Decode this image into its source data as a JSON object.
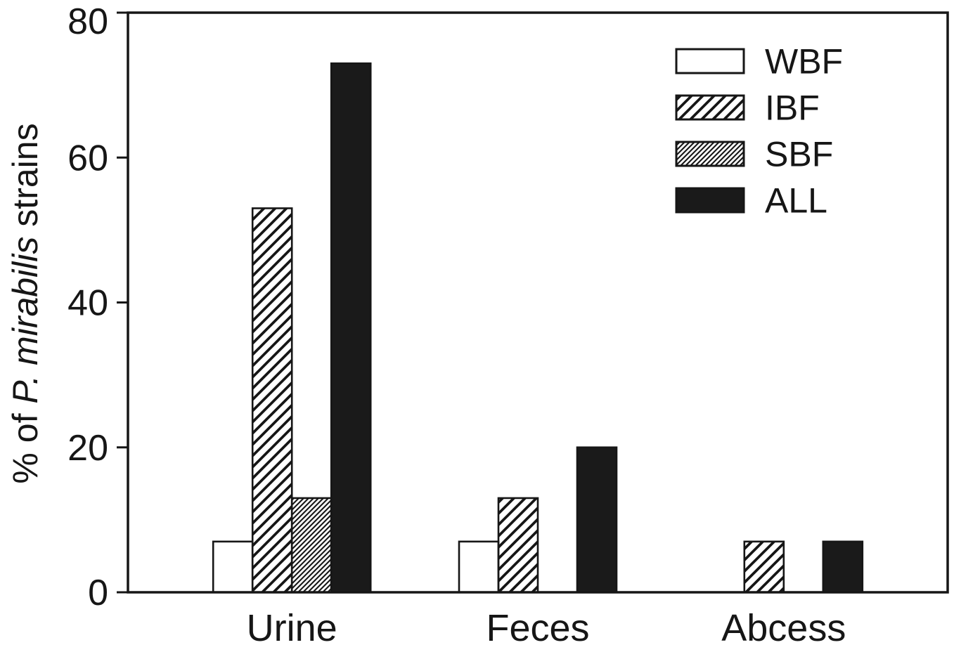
{
  "chart_data": {
    "type": "bar",
    "categories": [
      "Urine",
      "Feces",
      "Abcess"
    ],
    "series": [
      {
        "name": "WBF",
        "style": "open",
        "values": [
          7,
          7,
          0
        ]
      },
      {
        "name": "IBF",
        "style": "hatch",
        "values": [
          53,
          13,
          7
        ]
      },
      {
        "name": "SBF",
        "style": "dense-hatch",
        "values": [
          13,
          0,
          0
        ]
      },
      {
        "name": "ALL",
        "style": "solid",
        "values": [
          73,
          20,
          7
        ]
      }
    ],
    "title": "",
    "xlabel": "",
    "ylabel": "% of P. mirabilis strains",
    "ylabel_parts": {
      "prefix": "% of ",
      "italic": "P. mirabilis",
      "suffix": " strains"
    },
    "ylim": [
      0,
      80
    ],
    "yticks": [
      0,
      20,
      40,
      60,
      80
    ],
    "grid": false,
    "legend_position": "top-right",
    "colors": {
      "bar_solid": "#1a1a1a",
      "axis": "#161616",
      "background": "#ffffff"
    }
  }
}
